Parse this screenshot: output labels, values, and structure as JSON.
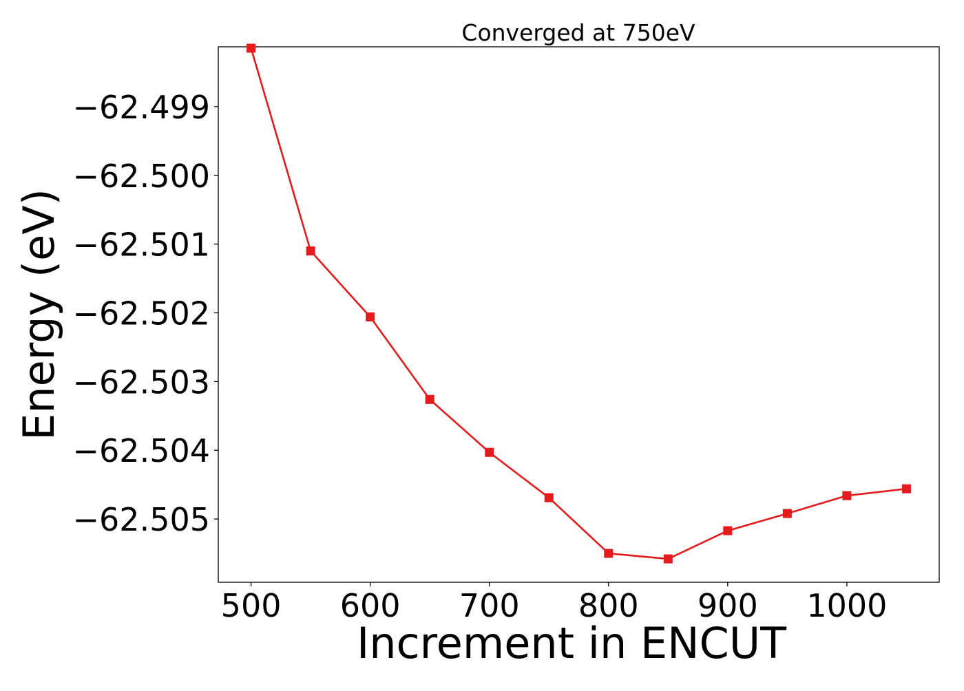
{
  "chart_data": {
    "type": "line",
    "title": "Converged at 750eV",
    "xlabel": "Increment in ENCUT",
    "ylabel": "Energy (eV)",
    "x": [
      500,
      550,
      600,
      650,
      700,
      750,
      800,
      850,
      900,
      950,
      1000,
      1050
    ],
    "series": [
      {
        "values": [
          -62.49815,
          -62.5011,
          -62.50206,
          -62.50326,
          -62.50403,
          -62.50469,
          -62.5055,
          -62.50558,
          -62.50517,
          -62.50492,
          -62.50466,
          -62.50456
        ]
      }
    ],
    "xlim": [
      472.5,
      1077.5
    ],
    "ylim": [
      -62.50592,
      -62.49813
    ],
    "xticks": [
      500,
      600,
      700,
      800,
      900,
      1000
    ],
    "xtick_labels": [
      "500",
      "600",
      "700",
      "800",
      "900",
      "1000"
    ],
    "yticks": [
      -62.499,
      -62.5,
      -62.501,
      -62.502,
      -62.503,
      -62.504,
      -62.505
    ],
    "ytick_labels": [
      "−62.499",
      "−62.500",
      "−62.501",
      "−62.502",
      "−62.503",
      "−62.504",
      "−62.505"
    ],
    "marker": "square",
    "line_color": "#e41a1c",
    "grid": false,
    "legend": "none"
  }
}
